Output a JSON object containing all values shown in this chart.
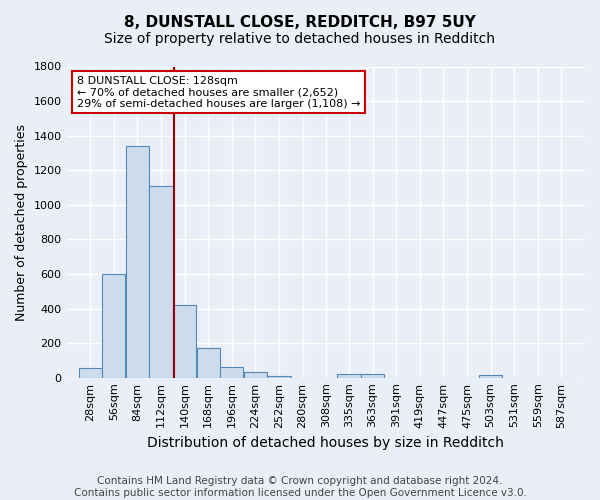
{
  "title_line1": "8, DUNSTALL CLOSE, REDDITCH, B97 5UY",
  "title_line2": "Size of property relative to detached houses in Redditch",
  "xlabel": "Distribution of detached houses by size in Redditch",
  "ylabel": "Number of detached properties",
  "footer": "Contains HM Land Registry data © Crown copyright and database right 2024.\nContains public sector information licensed under the Open Government Licence v3.0.",
  "bar_labels": [
    "28sqm",
    "56sqm",
    "84sqm",
    "112sqm",
    "140sqm",
    "168sqm",
    "196sqm",
    "224sqm",
    "252sqm",
    "280sqm",
    "308sqm",
    "335sqm",
    "363sqm",
    "391sqm",
    "419sqm",
    "447sqm",
    "475sqm",
    "503sqm",
    "531sqm",
    "559sqm",
    "587sqm"
  ],
  "bar_values": [
    55,
    600,
    1340,
    1110,
    420,
    170,
    60,
    35,
    10,
    0,
    0,
    20,
    20,
    0,
    0,
    0,
    0,
    15,
    0,
    0,
    0
  ],
  "bar_color": "#ccdcec",
  "bar_edge_color": "#5588bb",
  "property_line_x": 128,
  "bin_width": 28,
  "ylim": [
    0,
    1800
  ],
  "yticks": [
    0,
    200,
    400,
    600,
    800,
    1000,
    1200,
    1400,
    1600,
    1800
  ],
  "annotation_line1": "8 DUNSTALL CLOSE: 128sqm",
  "annotation_line2": "← 70% of detached houses are smaller (2,652)",
  "annotation_line3": "29% of semi-detached houses are larger (1,108) →",
  "annotation_box_color": "#ffffff",
  "annotation_box_edge": "#cc0000",
  "vline_color": "#990000",
  "bg_color": "#eaeef6",
  "grid_color": "#ffffff",
  "title1_fontsize": 11,
  "title2_fontsize": 10,
  "xlabel_fontsize": 10,
  "ylabel_fontsize": 9,
  "tick_fontsize": 8,
  "annotation_fontsize": 8,
  "footer_fontsize": 7.5
}
